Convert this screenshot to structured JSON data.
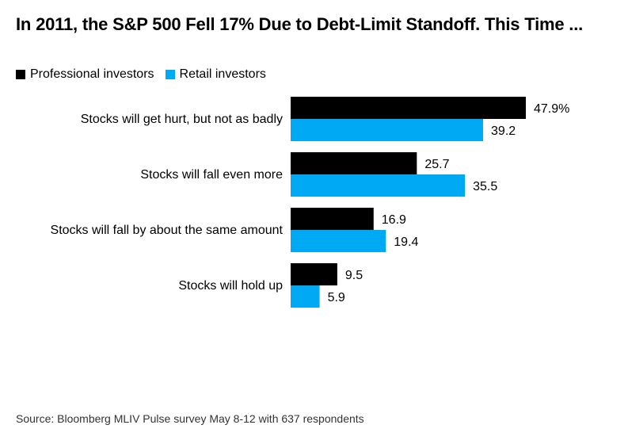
{
  "colors": {
    "professional": "#000000",
    "retail": "#00a9f4",
    "text": "#000000"
  },
  "chart_data": {
    "type": "bar",
    "orientation": "horizontal",
    "title": "In 2011, the S&P 500 Fell 17% Due to Debt-Limit Standoff. This Time ...",
    "categories": [
      "Stocks will get hurt, but not as badly",
      "Stocks will fall even more",
      "Stocks will fall by about the same amount",
      "Stocks will hold up"
    ],
    "series": [
      {
        "name": "Professional investors",
        "values": [
          47.9,
          25.7,
          16.9,
          9.5
        ],
        "labels": [
          "47.9%",
          "25.7",
          "16.9",
          "9.5"
        ]
      },
      {
        "name": "Retail investors",
        "values": [
          39.2,
          35.5,
          19.4,
          5.9
        ],
        "labels": [
          "39.2",
          "35.5",
          "19.4",
          "5.9"
        ]
      }
    ],
    "xlim": [
      0,
      50
    ],
    "grid": false,
    "legend_position": "top-left"
  },
  "source": "Source: Bloomberg MLIV Pulse survey May 8-12 with 637 respondents"
}
